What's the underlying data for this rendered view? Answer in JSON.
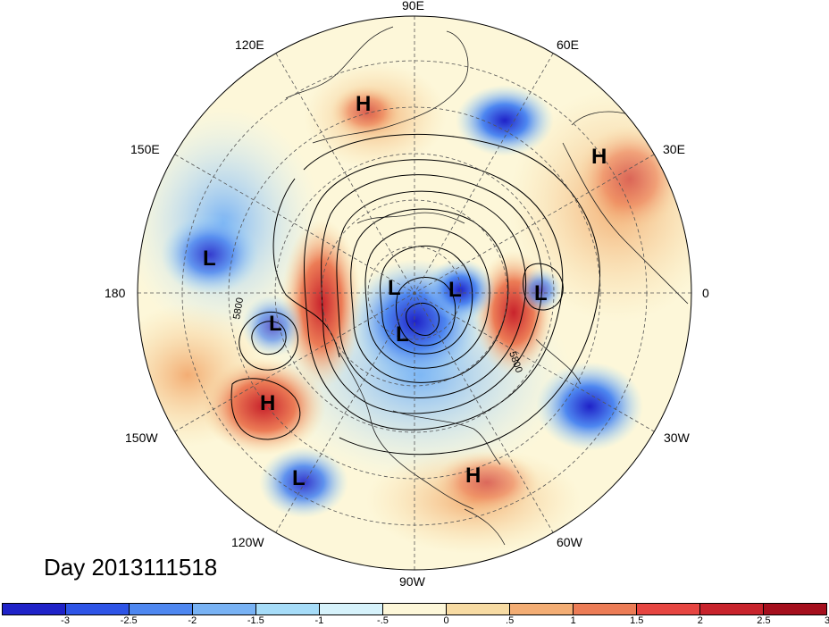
{
  "map": {
    "type": "polar stereographic anomaly map",
    "hemisphere": "north",
    "contour_label_value": "5800",
    "longitude_labels": {
      "lon_90e": "90E",
      "lon_120e": "120E",
      "lon_60e": "60E",
      "lon_150e": "150E",
      "lon_30e": "30E",
      "lon_180": "180",
      "lon_0": "0",
      "lon_150w": "150W",
      "lon_30w": "30W",
      "lon_120w": "120W",
      "lon_60w": "60W",
      "lon_90w": "90W"
    },
    "centers": [
      {
        "label": "H",
        "type": "high"
      },
      {
        "label": "H",
        "type": "high"
      },
      {
        "label": "L",
        "type": "low"
      },
      {
        "label": "L",
        "type": "low"
      },
      {
        "label": "L",
        "type": "low"
      },
      {
        "label": "L",
        "type": "low"
      },
      {
        "label": "L",
        "type": "low"
      },
      {
        "label": "L",
        "type": "low"
      },
      {
        "label": "H",
        "type": "high"
      },
      {
        "label": "L",
        "type": "low"
      },
      {
        "label": "H",
        "type": "high"
      }
    ]
  },
  "date_label": "Day 2013111518",
  "colorbar": {
    "colors": [
      "#1f22c8",
      "#2e54e6",
      "#4e87f0",
      "#78b2f4",
      "#a6dcf8",
      "#d6f2fb",
      "#fdf7d9",
      "#f7dba3",
      "#f3ad74",
      "#ec7c56",
      "#e64541",
      "#c8232c",
      "#a50f1d"
    ],
    "tick_labels": [
      "-3",
      "-2.5",
      "-2",
      "-1.5",
      "-1",
      "-.5",
      "0",
      ".5",
      "1",
      "1.5",
      "2",
      "2.5",
      "3"
    ]
  }
}
